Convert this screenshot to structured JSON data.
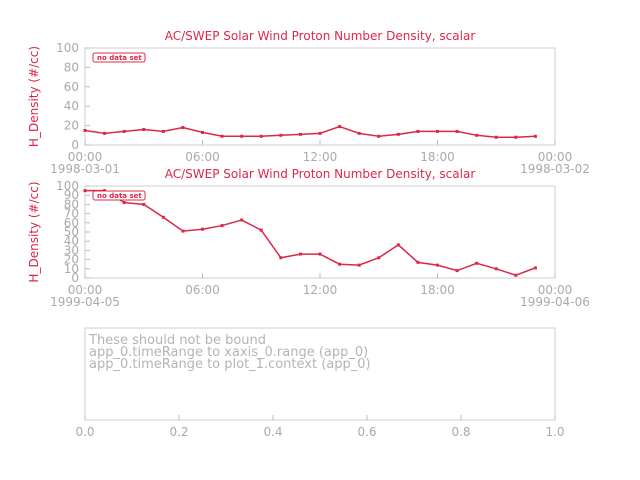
{
  "chart_data": [
    {
      "type": "line",
      "title": "AC/SWEP  Solar Wind Proton Number Density, scalar",
      "ylabel": "H_Density (#/cc)",
      "x": [
        "1998-03-01T00:00",
        "1998-03-01T01:00",
        "1998-03-01T02:00",
        "1998-03-01T03:00",
        "1998-03-01T04:00",
        "1998-03-01T05:00",
        "1998-03-01T06:00",
        "1998-03-01T07:00",
        "1998-03-01T08:00",
        "1998-03-01T09:00",
        "1998-03-01T10:00",
        "1998-03-01T11:00",
        "1998-03-01T12:00",
        "1998-03-01T13:00",
        "1998-03-01T14:00",
        "1998-03-01T15:00",
        "1998-03-01T16:00",
        "1998-03-01T17:00",
        "1998-03-01T18:00",
        "1998-03-01T19:00",
        "1998-03-01T20:00",
        "1998-03-01T21:00",
        "1998-03-01T22:00",
        "1998-03-01T23:00"
      ],
      "series": [
        {
          "name": "no data set",
          "color": "#dc2846",
          "values": [
            15,
            12,
            14,
            16,
            14,
            18,
            13,
            9,
            9,
            9,
            10,
            11,
            12,
            19,
            12,
            9,
            11,
            14,
            14,
            14,
            10,
            8,
            8,
            9
          ]
        }
      ],
      "xlim": [
        "1998-03-01T00:00",
        "1998-03-02T00:00"
      ],
      "xticks": [
        {
          "value": "1998-03-01T00:00",
          "label": "00:00",
          "sublabel": "1998-03-01"
        },
        {
          "value": "1998-03-01T06:00",
          "label": "06:00"
        },
        {
          "value": "1998-03-01T12:00",
          "label": "12:00"
        },
        {
          "value": "1998-03-01T18:00",
          "label": "18:00"
        },
        {
          "value": "1998-03-02T00:00",
          "label": "00:00",
          "sublabel": "1998-03-02"
        }
      ],
      "ylim": [
        0,
        100
      ],
      "yticks": [
        0,
        20,
        40,
        60,
        80,
        100
      ],
      "legend": "upper left"
    },
    {
      "type": "line",
      "title": "AC/SWEP  Solar Wind Proton Number Density, scalar",
      "ylabel": "H_Density (#/cc)",
      "x": [
        "1999-04-05T00:00",
        "1999-04-05T01:00",
        "1999-04-05T02:00",
        "1999-04-05T03:00",
        "1999-04-05T04:00",
        "1999-04-05T05:00",
        "1999-04-05T06:00",
        "1999-04-05T07:00",
        "1999-04-05T08:00",
        "1999-04-05T09:00",
        "1999-04-05T10:00",
        "1999-04-05T11:00",
        "1999-04-05T12:00",
        "1999-04-05T13:00",
        "1999-04-05T14:00",
        "1999-04-05T15:00",
        "1999-04-05T16:00",
        "1999-04-05T17:00",
        "1999-04-05T18:00",
        "1999-04-05T19:00",
        "1999-04-05T20:00",
        "1999-04-05T21:00",
        "1999-04-05T22:00",
        "1999-04-05T23:00"
      ],
      "series": [
        {
          "name": "no data set",
          "color": "#dc2846",
          "values": [
            95,
            95,
            82,
            80,
            66,
            51,
            53,
            57,
            63,
            52,
            22,
            26,
            26,
            15,
            14,
            22,
            36,
            17,
            14,
            8,
            16,
            10,
            3,
            11
          ]
        }
      ],
      "xlim": [
        "1999-04-05T00:00",
        "1999-04-06T00:00"
      ],
      "xticks": [
        {
          "value": "1999-04-05T00:00",
          "label": "00:00",
          "sublabel": "1999-04-05"
        },
        {
          "value": "1999-04-05T06:00",
          "label": "06:00"
        },
        {
          "value": "1999-04-05T12:00",
          "label": "12:00"
        },
        {
          "value": "1999-04-05T18:00",
          "label": "18:00"
        },
        {
          "value": "1999-04-06T00:00",
          "label": "00:00",
          "sublabel": "1999-04-06"
        }
      ],
      "ylim": [
        0,
        100
      ],
      "yticks": [
        0,
        10,
        20,
        30,
        40,
        50,
        60,
        70,
        80,
        90,
        100
      ],
      "legend": "upper left"
    },
    {
      "type": "line",
      "annotation": [
        "These should not be bound",
        "app_0.timeRange to xaxis_0.range  (app_0)",
        "app_0.timeRange to plot_1.context  (app_0)"
      ],
      "series": [],
      "xlim": [
        0,
        1
      ],
      "xticks": [
        {
          "value": 0,
          "label": "0.0"
        },
        {
          "value": 0.2,
          "label": "0.2"
        },
        {
          "value": 0.4,
          "label": "0.4"
        },
        {
          "value": 0.6,
          "label": "0.6"
        },
        {
          "value": 0.8,
          "label": "0.8"
        },
        {
          "value": 1,
          "label": "1.0"
        }
      ]
    }
  ]
}
